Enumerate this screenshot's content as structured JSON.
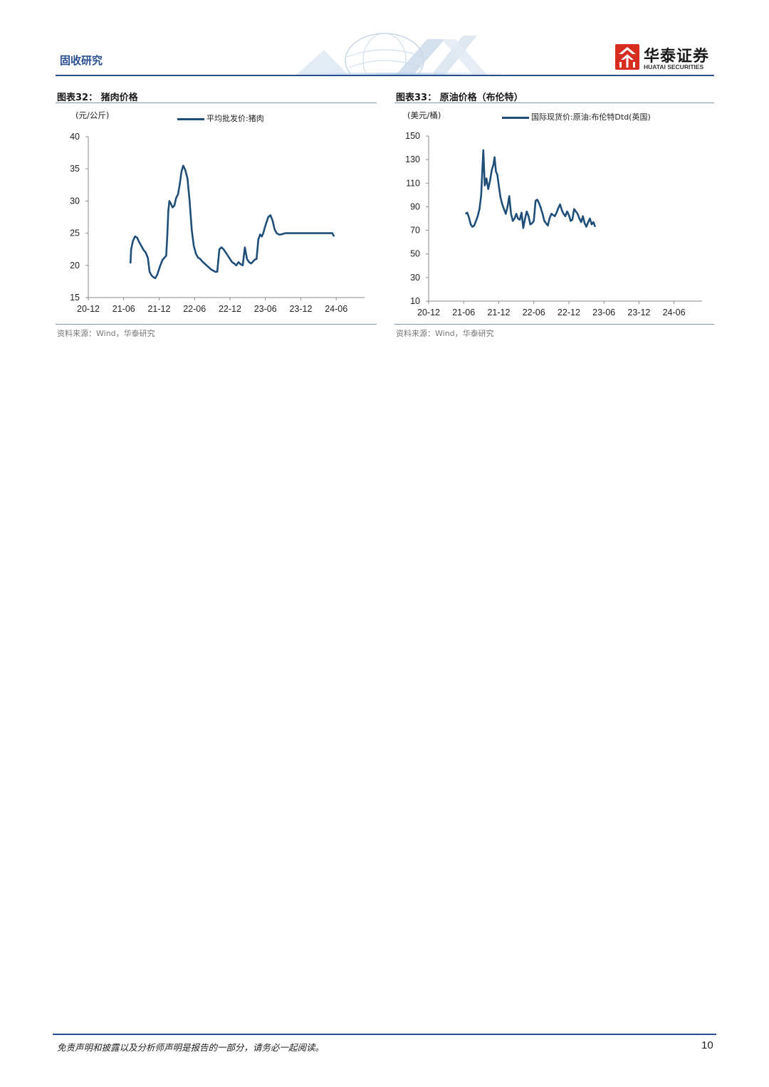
{
  "header": {
    "title": "固收研究"
  },
  "logo": {
    "cn": "华泰证券",
    "en": "HUATAI SECURITIES"
  },
  "charts": [
    {
      "id": "pork",
      "panel_title": "图表32：  猪肉价格",
      "unit": "(元/公斤)",
      "legend": "平均批发价:猪肉",
      "source": "资料来源：Wind，华泰研究",
      "chart_data": {
        "type": "line",
        "x_ticks": [
          "20-12",
          "21-06",
          "21-12",
          "22-06",
          "22-12",
          "23-06",
          "23-12",
          "24-06"
        ],
        "y_ticks": [
          15,
          20,
          25,
          30,
          35,
          40
        ],
        "ylim": [
          15,
          40
        ],
        "series": [
          {
            "name": "平均批发价:猪肉",
            "x": [
              11.9,
              12.1,
              12.6,
              13.2,
              13.8,
              14.4,
              15.0,
              15.6,
              16.2,
              16.8,
              17.3,
              17.8,
              18.3,
              18.9,
              19.5,
              20.2,
              20.9,
              21.5,
              22.0,
              22.3,
              22.6,
              22.9,
              23.3,
              23.8,
              24.3,
              24.8,
              25.3,
              25.8,
              26.3,
              26.8,
              27.4,
              28.0,
              28.6,
              29.2,
              29.8,
              30.4,
              31.0,
              31.6,
              32.2,
              32.8,
              33.4,
              34.0,
              34.6,
              35.2,
              35.8,
              36.4,
              37.0,
              37.6,
              38.2,
              38.8,
              39.4,
              40.0,
              40.6,
              41.2,
              41.8,
              42.4,
              43.0,
              43.6,
              44.2,
              44.8,
              45.4,
              46.0,
              46.5,
              47.0,
              47.5,
              48.0,
              48.5,
              49.0,
              49.4,
              49.8,
              50.2,
              50.8,
              51.4,
              52.0,
              52.6,
              53.2,
              53.8,
              54.4,
              55.0,
              55.6,
              56.2,
              56.8,
              57.4,
              58.0,
              58.6,
              59.2,
              59.8,
              60.4,
              60.9,
              61.4,
              61.9,
              62.4,
              62.9,
              63.4,
              63.9,
              64.4,
              64.9,
              65.4,
              65.9,
              66.4,
              66.9,
              67.4,
              67.9,
              68.4,
              68.9,
              69.4
            ],
            "y": [
              20.3,
              22.5,
              23.8,
              24.5,
              24.3,
              23.6,
              23.0,
              22.4,
              22.0,
              21.2,
              19.0,
              18.5,
              18.2,
              18.0,
              18.6,
              19.8,
              20.8,
              21.2,
              21.5,
              24.5,
              28.5,
              30.0,
              29.6,
              29.0,
              29.3,
              30.5,
              31.0,
              32.5,
              34.5,
              35.5,
              34.8,
              33.5,
              30.0,
              25.5,
              23.0,
              21.8,
              21.2,
              21.0,
              20.6,
              20.3,
              20.0,
              19.7,
              19.4,
              19.2,
              19.0,
              19.0,
              22.5,
              22.8,
              22.5,
              22.0,
              21.5,
              21.0,
              20.5,
              20.3,
              20.0,
              20.5,
              20.2,
              20.0,
              22.8,
              21.0,
              20.5,
              20.3,
              20.6,
              20.9,
              21.0,
              24.0,
              24.8,
              24.5,
              25.0,
              25.8,
              26.5,
              27.5,
              27.8,
              27.0,
              25.6,
              25.0,
              24.8,
              24.8,
              24.9,
              25.0,
              25.0,
              25.0,
              25.0,
              25.0,
              25.0,
              25.0,
              25.0,
              25.0,
              25.0,
              25.0,
              25.0,
              25.0,
              25.0,
              25.0,
              25.0,
              25.0,
              25.0,
              25.0,
              25.0,
              25.0,
              25.0,
              25.0,
              25.0,
              25.0,
              25.0,
              24.5
            ]
          }
        ]
      }
    },
    {
      "id": "brent",
      "panel_title": "图表33：  原油价格（布伦特）",
      "unit": "(美元/桶)",
      "legend": "国际现货价:原油:布伦特Dtd(英国)",
      "source": "资料来源：Wind，华泰研究",
      "chart_data": {
        "type": "line",
        "x_ticks": [
          "20-12",
          "21-06",
          "21-12",
          "22-06",
          "22-12",
          "23-06",
          "23-12",
          "24-06"
        ],
        "y_ticks": [
          10,
          30,
          50,
          70,
          90,
          110,
          130,
          150
        ],
        "ylim": [
          10,
          150
        ],
        "series": [
          {
            "name": "国际现货价:原油:布伦特Dtd(英国)",
            "x": [
              10.5,
              11.0,
              11.5,
              12.0,
              12.5,
              13.0,
              13.5,
              14.0,
              14.5,
              15.0,
              15.3,
              15.6,
              16.0,
              16.5,
              17.0,
              17.5,
              18.0,
              18.5,
              18.8,
              19.2,
              19.6,
              20.0,
              20.5,
              21.0,
              21.5,
              22.0,
              22.5,
              23.0,
              23.5,
              24.0,
              24.5,
              25.0,
              25.5,
              26.0,
              26.5,
              27.0,
              27.5,
              28.0,
              28.5,
              29.0,
              29.5,
              30.0,
              30.5,
              31.0,
              31.5,
              32.0,
              32.5,
              33.0,
              33.5,
              34.0,
              34.5,
              35.0,
              35.5,
              36.0,
              36.5,
              37.0,
              37.5,
              38.0,
              38.5,
              39.0,
              39.5,
              40.0,
              40.5,
              41.0,
              41.5,
              42.0,
              42.5,
              43.0,
              43.5,
              44.0,
              44.5,
              45.0,
              45.5,
              46.0,
              46.5,
              47.0,
              47.5
            ],
            "y": [
              84,
              85,
              81,
              75,
              73,
              74,
              78,
              82,
              88,
              100,
              120,
              138,
              108,
              114,
              105,
              112,
              121,
              126,
              132,
              120,
              117,
              108,
              98,
              92,
              88,
              84,
              90,
              99,
              84,
              78,
              80,
              84,
              80,
              79,
              85,
              72,
              80,
              86,
              82,
              75,
              76,
              78,
              95,
              96,
              93,
              89,
              84,
              78,
              76,
              74,
              80,
              84,
              83,
              82,
              85,
              89,
              92,
              87,
              84,
              82,
              86,
              83,
              78,
              79,
              88,
              86,
              84,
              80,
              77,
              82,
              76,
              73,
              77,
              80,
              75,
              77,
              73
            ]
          }
        ]
      }
    }
  ],
  "footer": {
    "disclaimer": "免责声明和披露以及分析师声明是报告的一部分，请务必一起阅读。",
    "page": "10"
  }
}
